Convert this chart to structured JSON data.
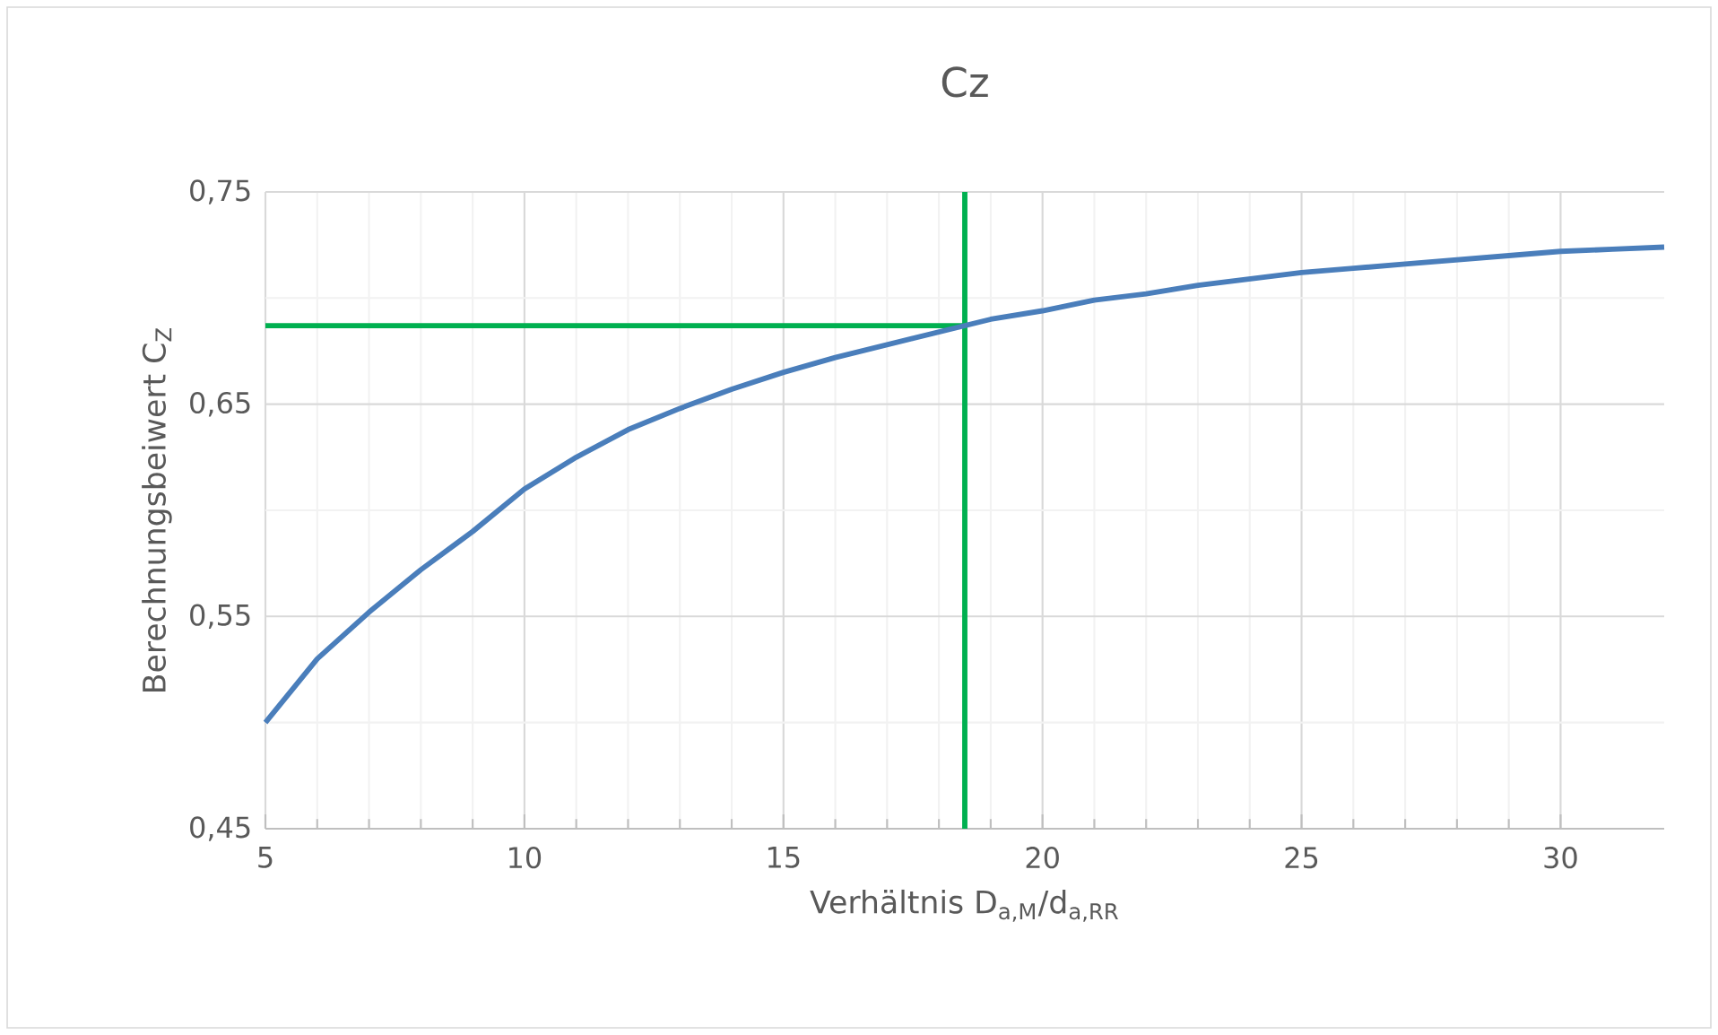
{
  "chart_data": {
    "type": "line",
    "title": "Cz",
    "xlabel": "Verhältnis D$_{a,M}$/d$_{a,RR}$",
    "ylabel": "Berechnungsbeiwert C$_{Z}$",
    "x": [
      5,
      6,
      7,
      8,
      9,
      10,
      11,
      12,
      13,
      14,
      15,
      16,
      17,
      18,
      19,
      20,
      21,
      22,
      23,
      24,
      25,
      26,
      27,
      28,
      29,
      30,
      31,
      32
    ],
    "series": [
      {
        "color": "#4a7ebb",
        "values": [
          0.5,
          0.53,
          0.552,
          0.572,
          0.59,
          0.61,
          0.625,
          0.638,
          0.648,
          0.657,
          0.665,
          0.672,
          0.678,
          0.684,
          0.69,
          0.694,
          0.699,
          0.702,
          0.706,
          0.709,
          0.712,
          0.714,
          0.716,
          0.718,
          0.72,
          0.722,
          0.723,
          0.724
        ]
      }
    ],
    "xlim": [
      5,
      32
    ],
    "xticks": [
      5,
      10,
      15,
      20,
      25,
      30
    ],
    "ylim": [
      0.45,
      0.75
    ],
    "yticks": [
      {
        "value": 0.45,
        "label": "0,45"
      },
      {
        "value": 0.55,
        "label": "0,55"
      },
      {
        "value": 0.65,
        "label": "0,65"
      },
      {
        "value": 0.75,
        "label": "0,75"
      }
    ],
    "grid": true,
    "ref_lines": [
      {
        "axis": "x",
        "value": 18.5,
        "color": "#00b050"
      },
      {
        "axis": "y",
        "value": 0.687,
        "color": "#00b050"
      }
    ]
  }
}
